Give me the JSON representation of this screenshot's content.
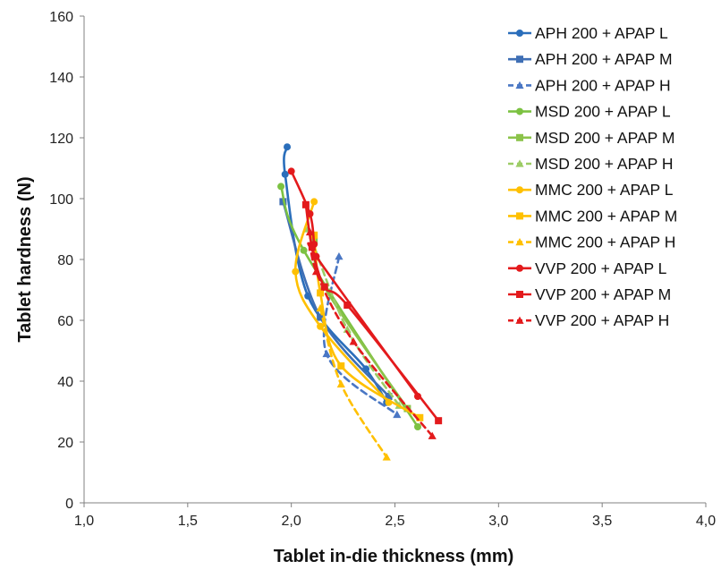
{
  "chart_data": {
    "type": "line",
    "title": "",
    "xlabel": "Tablet in-die thickness (mm)",
    "ylabel": "Tablet hardness (N)",
    "xlim": [
      1.0,
      4.0
    ],
    "ylim": [
      0,
      160
    ],
    "xticks": [
      "1,0",
      "1,5",
      "2,0",
      "2,5",
      "3,0",
      "3,5",
      "4,0"
    ],
    "yticks": [
      "0",
      "20",
      "40",
      "60",
      "80",
      "100",
      "120",
      "140",
      "160"
    ],
    "legend_position": "top-right",
    "grid": false,
    "series": [
      {
        "name": "APH 200 + APAP L",
        "color": "#2a6ebb",
        "marker": "circle",
        "dash": false,
        "x": [
          1.98,
          1.97,
          2.08,
          2.36,
          2.46
        ],
        "y": [
          117,
          108,
          68,
          44,
          33
        ]
      },
      {
        "name": "APH 200 + APAP M",
        "color": "#3f6fb5",
        "marker": "square",
        "dash": false,
        "x": [
          1.96,
          2.14,
          2.47
        ],
        "y": [
          99,
          61,
          35
        ]
      },
      {
        "name": "APH 200 + APAP H",
        "color": "#4a77c4",
        "marker": "triangle",
        "dash": true,
        "x": [
          2.23,
          2.17,
          2.51
        ],
        "y": [
          81,
          49,
          29
        ]
      },
      {
        "name": "MSD 200 + APAP L",
        "color": "#7cc242",
        "marker": "circle",
        "dash": false,
        "x": [
          1.95,
          2.06,
          2.61
        ],
        "y": [
          104,
          83,
          25
        ]
      },
      {
        "name": "MSD 200 + APAP M",
        "color": "#8bc34a",
        "marker": "square",
        "dash": false,
        "x": [
          2.11,
          2.16,
          2.56
        ],
        "y": [
          86,
          71,
          31
        ]
      },
      {
        "name": "MSD 200 + APAP H",
        "color": "#9ccc65",
        "marker": "triangle",
        "dash": true,
        "x": [
          2.08,
          2.27,
          2.52
        ],
        "y": [
          90,
          57,
          32
        ]
      },
      {
        "name": "MMC 200 + APAP L",
        "color": "#ffc000",
        "marker": "circle",
        "dash": false,
        "x": [
          2.11,
          2.02,
          2.14,
          2.47
        ],
        "y": [
          99,
          76,
          58,
          33
        ]
      },
      {
        "name": "MMC 200 + APAP M",
        "color": "#ffc000",
        "marker": "square",
        "dash": false,
        "x": [
          2.11,
          2.14,
          2.24,
          2.62
        ],
        "y": [
          88,
          69,
          45,
          28
        ]
      },
      {
        "name": "MMC 200 + APAP H",
        "color": "#ffc000",
        "marker": "triangle",
        "dash": true,
        "x": [
          2.14,
          2.24,
          2.46
        ],
        "y": [
          64,
          39,
          15
        ]
      },
      {
        "name": "VVP 200 + APAP L",
        "color": "#e31a1c",
        "marker": "circle",
        "dash": false,
        "x": [
          2.0,
          2.09,
          2.11,
          2.12,
          2.61
        ],
        "y": [
          109,
          95,
          85,
          81,
          35
        ]
      },
      {
        "name": "VVP 200 + APAP M",
        "color": "#e31a1c",
        "marker": "square",
        "dash": false,
        "x": [
          2.07,
          2.1,
          2.16,
          2.27,
          2.71
        ],
        "y": [
          98,
          84,
          71,
          65,
          27
        ]
      },
      {
        "name": "VVP 200 + APAP H",
        "color": "#e31a1c",
        "marker": "triangle",
        "dash": true,
        "x": [
          2.09,
          2.12,
          2.3,
          2.68
        ],
        "y": [
          89,
          76,
          53,
          22
        ]
      }
    ]
  }
}
